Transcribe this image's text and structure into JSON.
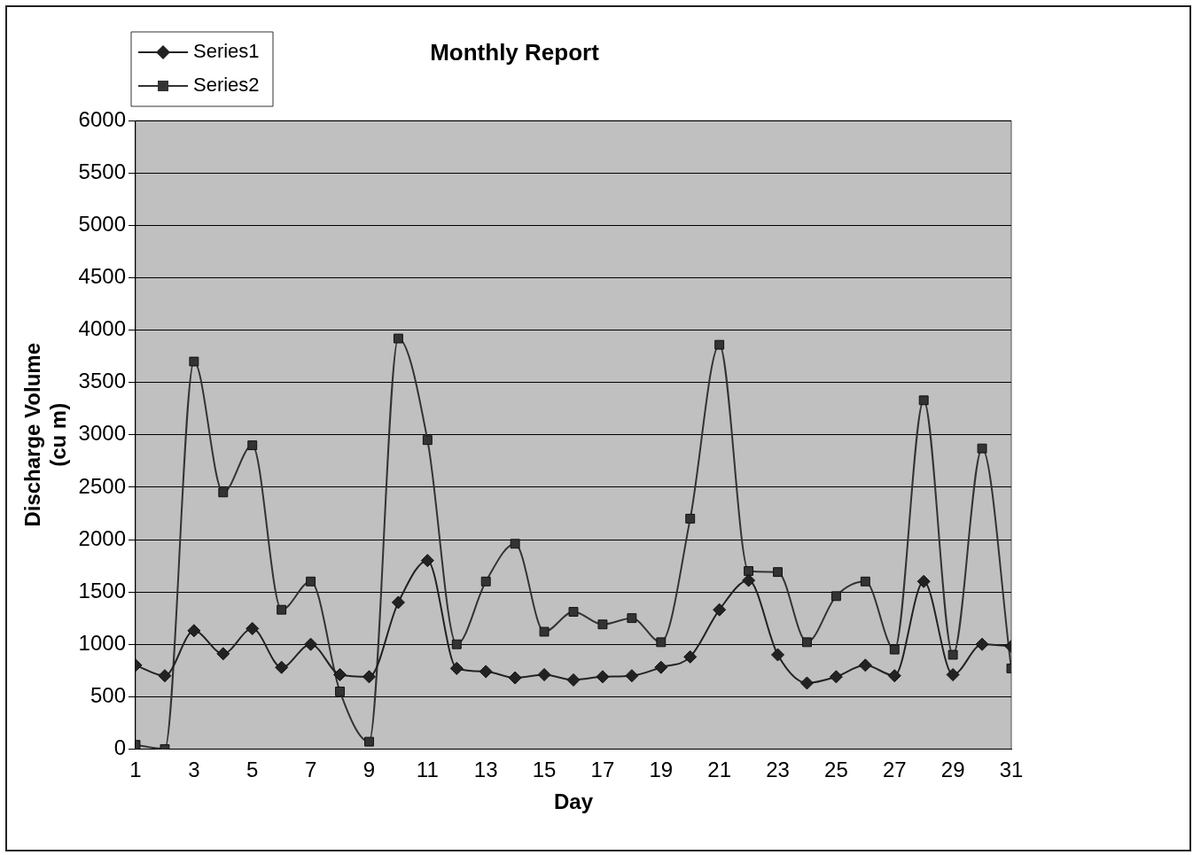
{
  "chart_data": {
    "type": "line",
    "title": "Monthly Report",
    "xlabel": "Day",
    "ylabel": "Discharge Volume (cu m)",
    "x": [
      1,
      2,
      3,
      4,
      5,
      6,
      7,
      8,
      9,
      10,
      11,
      12,
      13,
      14,
      15,
      16,
      17,
      18,
      19,
      20,
      21,
      22,
      23,
      24,
      25,
      26,
      27,
      28,
      29,
      30,
      31
    ],
    "xlim": [
      1,
      31
    ],
    "xticks": [
      1,
      3,
      5,
      7,
      9,
      11,
      13,
      15,
      17,
      19,
      21,
      23,
      25,
      27,
      29,
      31
    ],
    "ylim": [
      0,
      6000
    ],
    "yticks": [
      0,
      500,
      1000,
      1500,
      2000,
      2500,
      3000,
      3500,
      4000,
      4500,
      5000,
      5500,
      6000
    ],
    "grid": "y",
    "legend": "top left",
    "line_style": "solid",
    "series": [
      {
        "name": "Series1",
        "color": "#222222",
        "marker": "diamond",
        "values": [
          800,
          700,
          1130,
          910,
          1150,
          780,
          1000,
          710,
          690,
          1400,
          1800,
          770,
          740,
          680,
          710,
          660,
          690,
          700,
          780,
          880,
          1330,
          1610,
          900,
          630,
          690,
          800,
          700,
          1600,
          710,
          1000,
          980
        ]
      },
      {
        "name": "Series2",
        "color": "#333333",
        "marker": "square",
        "values": [
          40,
          0,
          3700,
          2450,
          2900,
          1330,
          1600,
          550,
          70,
          3920,
          2950,
          1000,
          1600,
          1960,
          1120,
          1310,
          1190,
          1250,
          1020,
          2200,
          3860,
          1700,
          1690,
          1020,
          1460,
          1600,
          950,
          3330,
          900,
          2870,
          770
        ]
      }
    ]
  }
}
